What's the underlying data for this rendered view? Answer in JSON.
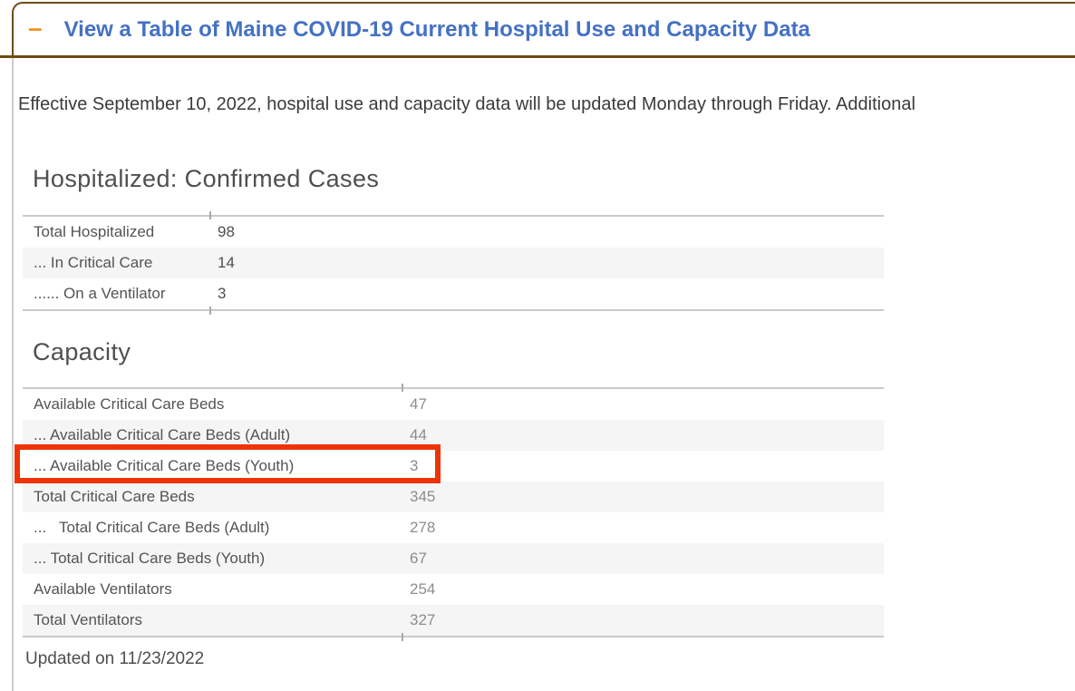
{
  "accordion": {
    "collapse_icon": "–",
    "title": "View a Table of Maine COVID-19 Current Hospital Use and Capacity Data"
  },
  "notice": "Effective September 10, 2022, hospital use and capacity data will be updated Monday through Friday. Additional",
  "sections": [
    {
      "title": "Hospitalized: Confirmed Cases",
      "rows": [
        {
          "label": "Total Hospitalized",
          "value": "98"
        },
        {
          "label": "... In Critical Care",
          "value": "14"
        },
        {
          "label": "...... On a Ventilator",
          "value": "3"
        }
      ]
    },
    {
      "title": "Capacity",
      "rows": [
        {
          "label": "Available Critical Care Beds",
          "value": "47"
        },
        {
          "label": "... Available Critical Care Beds (Adult)",
          "value": "44"
        },
        {
          "label": "... Available Critical Care Beds (Youth)",
          "value": "3",
          "highlighted": true
        },
        {
          "label": "Total Critical Care Beds",
          "value": "345"
        },
        {
          "label": "...   Total Critical Care Beds (Adult)",
          "value": "278"
        },
        {
          "label": "... Total Critical Care Beds (Youth)",
          "value": "67"
        },
        {
          "label": "Available Ventilators",
          "value": "254"
        },
        {
          "label": "Total Ventilators",
          "value": "327"
        }
      ]
    }
  ],
  "footer": {
    "updated": "Updated on 11/23/2022"
  },
  "colors": {
    "accent_blue": "#4471c4",
    "header_border_brown": "#6d4c16",
    "collapse_icon_orange": "#f0941e",
    "highlight_red": "#ee3407",
    "row_shade": "#f5f5f5",
    "table_line": "#c9c9c9",
    "label_text": "#545454",
    "value_dark": "#4e4e4e",
    "value_muted": "#8d8d8d"
  }
}
